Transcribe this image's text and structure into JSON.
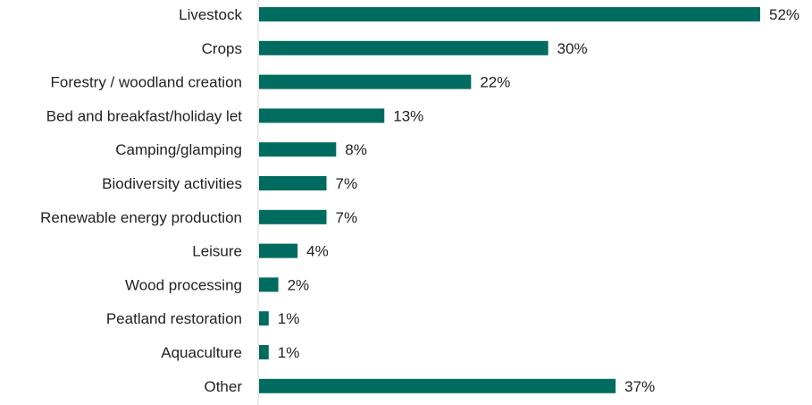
{
  "chart_data": {
    "type": "bar",
    "orientation": "horizontal",
    "categories": [
      "Livestock",
      "Crops",
      "Forestry / woodland creation",
      "Bed and breakfast/holiday let",
      "Camping/glamping",
      "Biodiversity activities",
      "Renewable energy production",
      "Leisure",
      "Wood processing",
      "Peatland restoration",
      "Aquaculture",
      "Other"
    ],
    "values": [
      52,
      30,
      22,
      13,
      8,
      7,
      7,
      4,
      2,
      1,
      1,
      37
    ],
    "value_labels": [
      "52%",
      "30%",
      "22%",
      "13%",
      "8%",
      "7%",
      "7%",
      "4%",
      "2%",
      "1%",
      "1%",
      "37%"
    ],
    "xlim": [
      0,
      52
    ],
    "grid": false,
    "legend": "none",
    "bar_color": "#006b5f"
  }
}
